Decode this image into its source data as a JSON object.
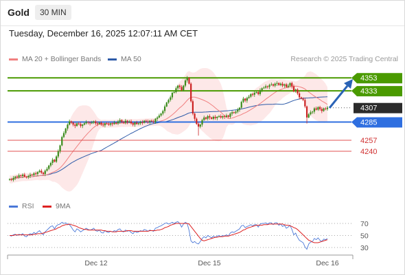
{
  "header": {
    "symbol": "Gold",
    "timeframe": "30 MIN",
    "datetime": "Tuesday, December 16, 2025 12:07:11 AM CET"
  },
  "legend": {
    "ma20": "MA 20 + Bollinger Bands",
    "ma50": "MA 50",
    "credit": "Research © 2025 Trading Central"
  },
  "rsi_legend": {
    "rsi": "RSI",
    "ma9": "9MA"
  },
  "colors": {
    "resistance": "#4a9a00",
    "support": "#2f6fe0",
    "minor": "#e05050",
    "price": "#333333",
    "ma20": "#f08080",
    "ma50": "#2d5aa8",
    "bb_fill": "#fde4e4",
    "up": "#3a8a1a",
    "down": "#cc2222",
    "rsi": "#4a78d8",
    "rsi_ma": "#dd2222",
    "arrow": "#2a63b6"
  },
  "chart_data": [
    {
      "type": "candlestick",
      "title": "Gold",
      "x_ticks": [
        "Dec 12",
        "Dec 15",
        "Dec 16"
      ],
      "ylim": [
        4185,
        4367
      ],
      "levels": [
        {
          "value": 4353,
          "label": "4353",
          "kind": "resistance"
        },
        {
          "value": 4333,
          "label": "4333",
          "kind": "resistance"
        },
        {
          "value": 4307,
          "label": "4307",
          "kind": "price"
        },
        {
          "value": 4285,
          "label": "4285",
          "kind": "support"
        },
        {
          "value": 4257,
          "label": "4257",
          "kind": "minor"
        },
        {
          "value": 4240,
          "label": "4240",
          "kind": "minor"
        }
      ],
      "close": [
        4197,
        4196,
        4199,
        4201,
        4200,
        4203,
        4202,
        4204,
        4201,
        4200,
        4202,
        4204,
        4203,
        4206,
        4205,
        4208,
        4210,
        4207,
        4205,
        4210,
        4213,
        4218,
        4222,
        4227,
        4224,
        4232,
        4240,
        4249,
        4262,
        4268,
        4275,
        4281,
        4286,
        4284,
        4281,
        4279,
        4283,
        4282,
        4279,
        4281,
        4283,
        4285,
        4284,
        4283,
        4284,
        4286,
        4283,
        4282,
        4284,
        4281,
        4280,
        4283,
        4282,
        4281,
        4283,
        4282,
        4284,
        4283,
        4286,
        4288,
        4285,
        4284,
        4287,
        4285,
        4286,
        4283,
        4281,
        4284,
        4282,
        4283,
        4285,
        4284,
        4287,
        4286,
        4285,
        4287,
        4286,
        4285,
        4290,
        4292,
        4295,
        4298,
        4302,
        4309,
        4315,
        4319,
        4323,
        4330,
        4331,
        4337,
        4341,
        4339,
        4334,
        4341,
        4349,
        4353,
        4344,
        4317,
        4298,
        4290,
        4282,
        4278,
        4281,
        4288,
        4292,
        4290,
        4294,
        4292,
        4290,
        4293,
        4291,
        4293,
        4294,
        4292,
        4294,
        4293,
        4295,
        4293,
        4298,
        4300,
        4299,
        4301,
        4304,
        4307,
        4316,
        4321,
        4318,
        4322,
        4324,
        4328,
        4327,
        4330,
        4331,
        4328,
        4334,
        4337,
        4338,
        4340,
        4339,
        4342,
        4343,
        4341,
        4344,
        4345,
        4342,
        4344,
        4341,
        4343,
        4339,
        4341,
        4345,
        4340,
        4332,
        4335,
        4329,
        4323,
        4321,
        4319,
        4309,
        4292,
        4297,
        4300,
        4301,
        4306,
        4304,
        4308,
        4305,
        4302,
        4306,
        4305,
        4307
      ]
    },
    {
      "type": "line",
      "title": "RSI",
      "ylim": [
        22,
        78
      ],
      "y_ticks": [
        70,
        50,
        30
      ],
      "series": [
        {
          "name": "RSI",
          "values": [
            50,
            49,
            51,
            52,
            50,
            52,
            51,
            53,
            49,
            48,
            51,
            53,
            52,
            55,
            53,
            56,
            58,
            54,
            51,
            56,
            59,
            62,
            65,
            66,
            61,
            66,
            68,
            69,
            72,
            70,
            71,
            69,
            68,
            64,
            59,
            56,
            61,
            59,
            56,
            58,
            60,
            62,
            60,
            59,
            60,
            62,
            58,
            57,
            59,
            55,
            54,
            58,
            56,
            55,
            57,
            56,
            58,
            57,
            60,
            61,
            57,
            56,
            59,
            57,
            58,
            55,
            53,
            57,
            55,
            56,
            58,
            57,
            60,
            59,
            57,
            59,
            58,
            57,
            62,
            63,
            65,
            66,
            68,
            70,
            71,
            69,
            70,
            72,
            70,
            72,
            73,
            70,
            64,
            69,
            72,
            70,
            58,
            41,
            38,
            40,
            37,
            36,
            40,
            45,
            48,
            46,
            50,
            48,
            46,
            49,
            47,
            49,
            50,
            48,
            50,
            49,
            51,
            49,
            54,
            56,
            55,
            57,
            59,
            61,
            66,
            67,
            63,
            65,
            66,
            68,
            66,
            68,
            68,
            64,
            69,
            70,
            70,
            71,
            69,
            71,
            71,
            68,
            71,
            71,
            67,
            69,
            65,
            67,
            62,
            64,
            67,
            60,
            51,
            54,
            47,
            42,
            40,
            38,
            31,
            27,
            36,
            39,
            40,
            45,
            43,
            46,
            42,
            40,
            44,
            43,
            45
          ]
        },
        {
          "name": "9MA",
          "values": [
            50,
            50,
            50,
            51,
            51,
            51,
            51,
            51,
            51,
            51,
            51,
            51,
            51,
            52,
            52,
            53,
            53,
            53,
            54,
            55,
            56,
            57,
            58,
            59,
            60,
            61,
            63,
            64,
            66,
            67,
            68,
            68,
            69,
            68,
            67,
            66,
            65,
            63,
            62,
            61,
            60,
            60,
            59,
            59,
            59,
            59,
            59,
            59,
            59,
            59,
            58,
            58,
            57,
            57,
            57,
            56,
            56,
            56,
            57,
            57,
            57,
            57,
            57,
            58,
            58,
            58,
            57,
            57,
            57,
            57,
            57,
            57,
            57,
            57,
            57,
            58,
            58,
            58,
            58,
            59,
            59,
            60,
            61,
            63,
            64,
            65,
            67,
            68,
            69,
            70,
            70,
            70,
            70,
            70,
            70,
            70,
            69,
            65,
            61,
            57,
            53,
            49,
            45,
            42,
            41,
            42,
            43,
            44,
            45,
            46,
            47,
            47,
            48,
            48,
            48,
            49,
            49,
            49,
            50,
            51,
            52,
            53,
            54,
            55,
            57,
            59,
            60,
            62,
            63,
            64,
            65,
            66,
            67,
            67,
            67,
            67,
            68,
            68,
            68,
            69,
            69,
            69,
            69,
            69,
            69,
            69,
            69,
            68,
            67,
            67,
            66,
            65,
            63,
            62,
            60,
            57,
            54,
            51,
            48,
            45,
            42,
            41,
            39,
            38,
            38,
            38,
            39,
            40,
            41,
            42,
            43
          ]
        }
      ]
    }
  ]
}
